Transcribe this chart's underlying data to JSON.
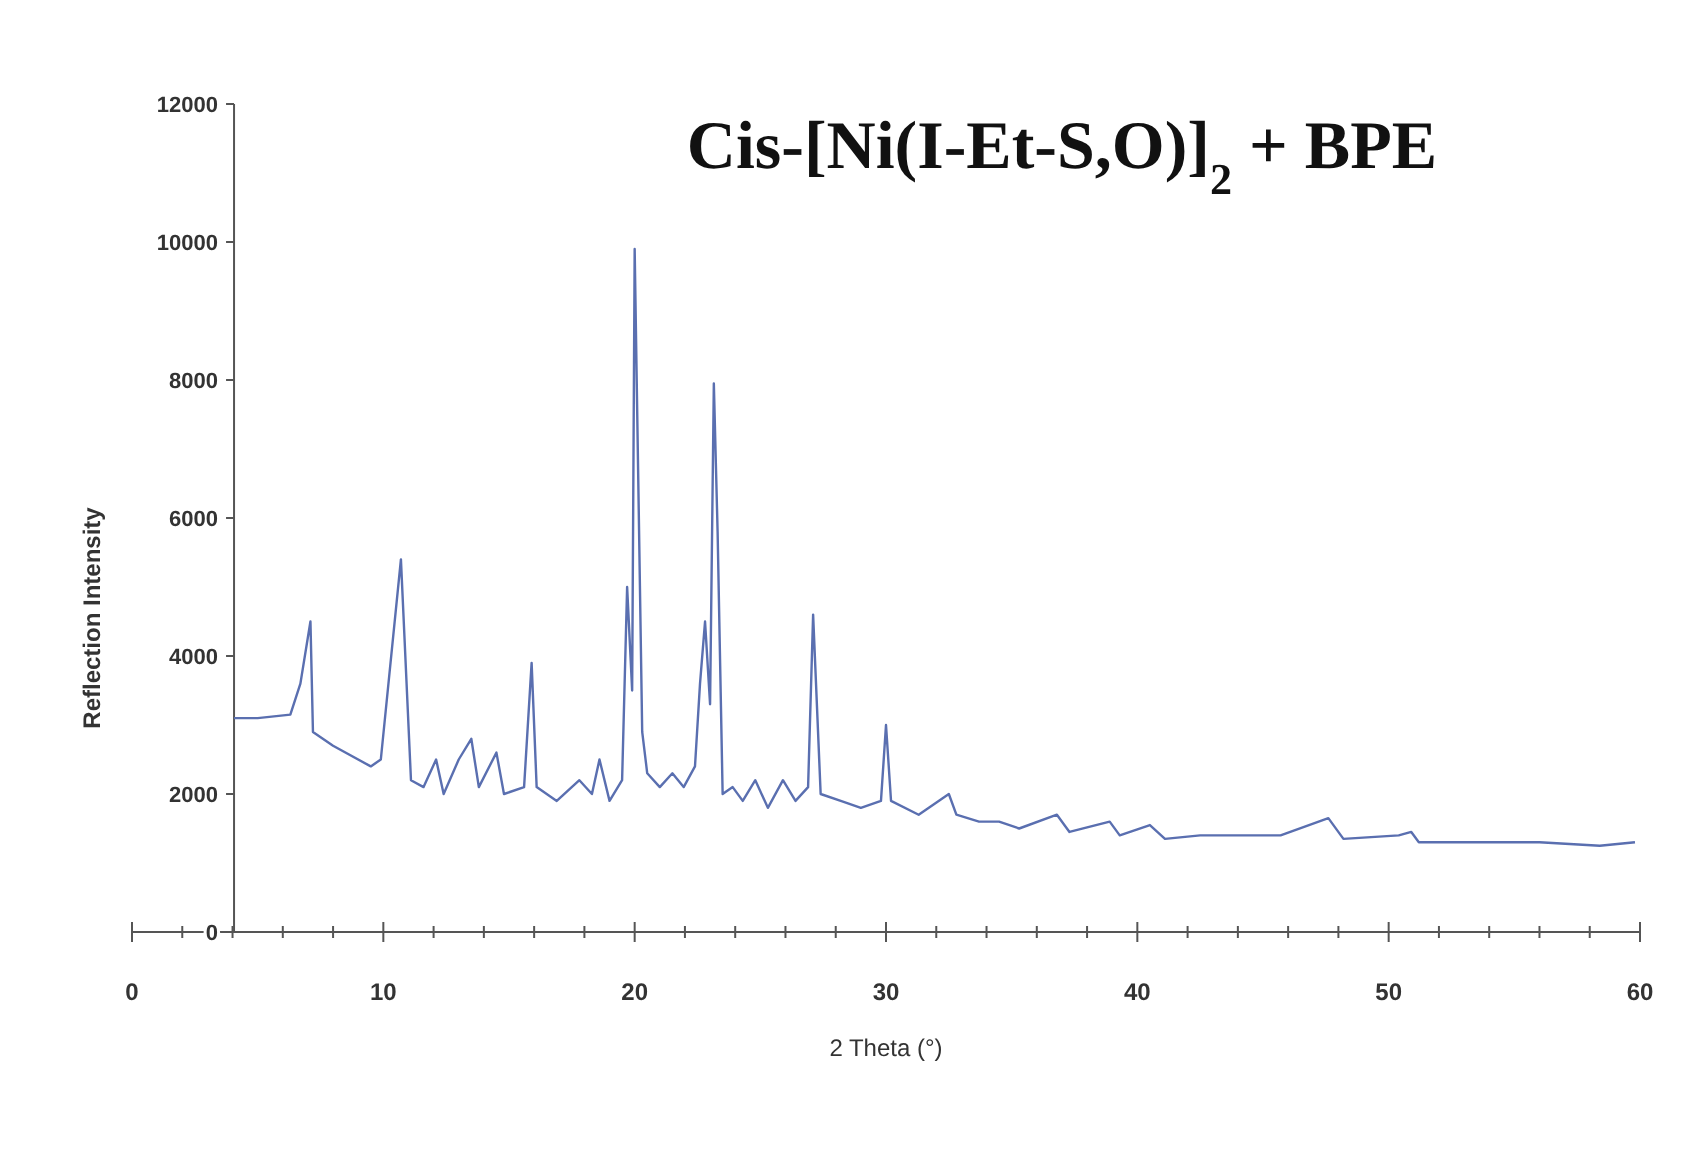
{
  "chart_data": {
    "type": "line",
    "title": "Cis-[Ni(I-Et-S,O)]$_{2}$ + BPE",
    "xlabel": "2 Theta (°)",
    "ylabel": "Reflection Intensity",
    "x": [
      4.06,
      5.0,
      6.3,
      6.7,
      7.1,
      7.2,
      8.0,
      9.5,
      9.9,
      10.7,
      11.1,
      11.6,
      12.1,
      12.4,
      13.0,
      13.5,
      13.8,
      14.5,
      14.8,
      15.6,
      15.9,
      16.1,
      16.9,
      17.8,
      18.3,
      18.6,
      19.0,
      19.5,
      19.7,
      19.9,
      20.0,
      20.3,
      20.5,
      21.0,
      21.5,
      21.95,
      22.4,
      22.6,
      22.8,
      23.0,
      23.15,
      23.3,
      23.5,
      23.9,
      24.3,
      24.8,
      25.3,
      25.9,
      26.4,
      26.9,
      27.1,
      27.4,
      28.2,
      29.0,
      29.8,
      30.0,
      30.2,
      31.3,
      32.5,
      32.8,
      33.7,
      34.5,
      35.3,
      36.8,
      37.3,
      38.9,
      39.3,
      40.5,
      41.1,
      42.5,
      44.1,
      45.7,
      47.6,
      48.2,
      50.4,
      50.9,
      51.2,
      53.6,
      56.0,
      58.4,
      59.8
    ],
    "series": [
      {
        "color": "#5a6fb0",
        "values": [
          3100,
          3100,
          3150,
          3600,
          4500,
          2900,
          2700,
          2400,
          2500,
          5400,
          2200,
          2100,
          2500,
          2000,
          2500,
          2800,
          2100,
          2600,
          2000,
          2100,
          3900,
          2100,
          1900,
          2200,
          2000,
          2500,
          1900,
          2200,
          5000,
          3500,
          9900,
          2900,
          2300,
          2100,
          2300,
          2100,
          2400,
          3600,
          4500,
          3300,
          7950,
          5800,
          2000,
          2100,
          1900,
          2200,
          1800,
          2200,
          1900,
          2100,
          4600,
          2000,
          1900,
          1800,
          1900,
          3000,
          1900,
          1700,
          2000,
          1700,
          1600,
          1600,
          1500,
          1700,
          1450,
          1600,
          1400,
          1550,
          1350,
          1400,
          1400,
          1400,
          1650,
          1350,
          1400,
          1450,
          1300,
          1300,
          1300,
          1250,
          1300
        ]
      }
    ],
    "xlim": [
      0,
      60
    ],
    "ylim": [
      0,
      12000
    ],
    "xticks": [
      0,
      {
        "value": 2,
        "label": null
      },
      {
        "value": 4,
        "label": null
      },
      {
        "value": 6,
        "label": null
      },
      {
        "value": 8,
        "label": null
      },
      10,
      {
        "value": 12,
        "label": null
      },
      {
        "value": 14,
        "label": null
      },
      {
        "value": 16,
        "label": null
      },
      {
        "value": 18,
        "label": null
      },
      20,
      {
        "value": 22,
        "label": null
      },
      {
        "value": 24,
        "label": null
      },
      {
        "value": 26,
        "label": null
      },
      {
        "value": 28,
        "label": null
      },
      30,
      {
        "value": 32,
        "label": null
      },
      {
        "value": 34,
        "label": null
      },
      {
        "value": 36,
        "label": null
      },
      {
        "value": 38,
        "label": null
      },
      40,
      {
        "value": 42,
        "label": null
      },
      {
        "value": 44,
        "label": null
      },
      {
        "value": 46,
        "label": null
      },
      {
        "value": 48,
        "label": null
      },
      50,
      {
        "value": 52,
        "label": null
      },
      {
        "value": 54,
        "label": null
      },
      {
        "value": 56,
        "label": null
      },
      {
        "value": 58,
        "label": null
      },
      60
    ],
    "yticks": [
      0,
      2000,
      4000,
      6000,
      8000,
      10000,
      12000
    ],
    "marker": "none",
    "line_style": "solid"
  }
}
